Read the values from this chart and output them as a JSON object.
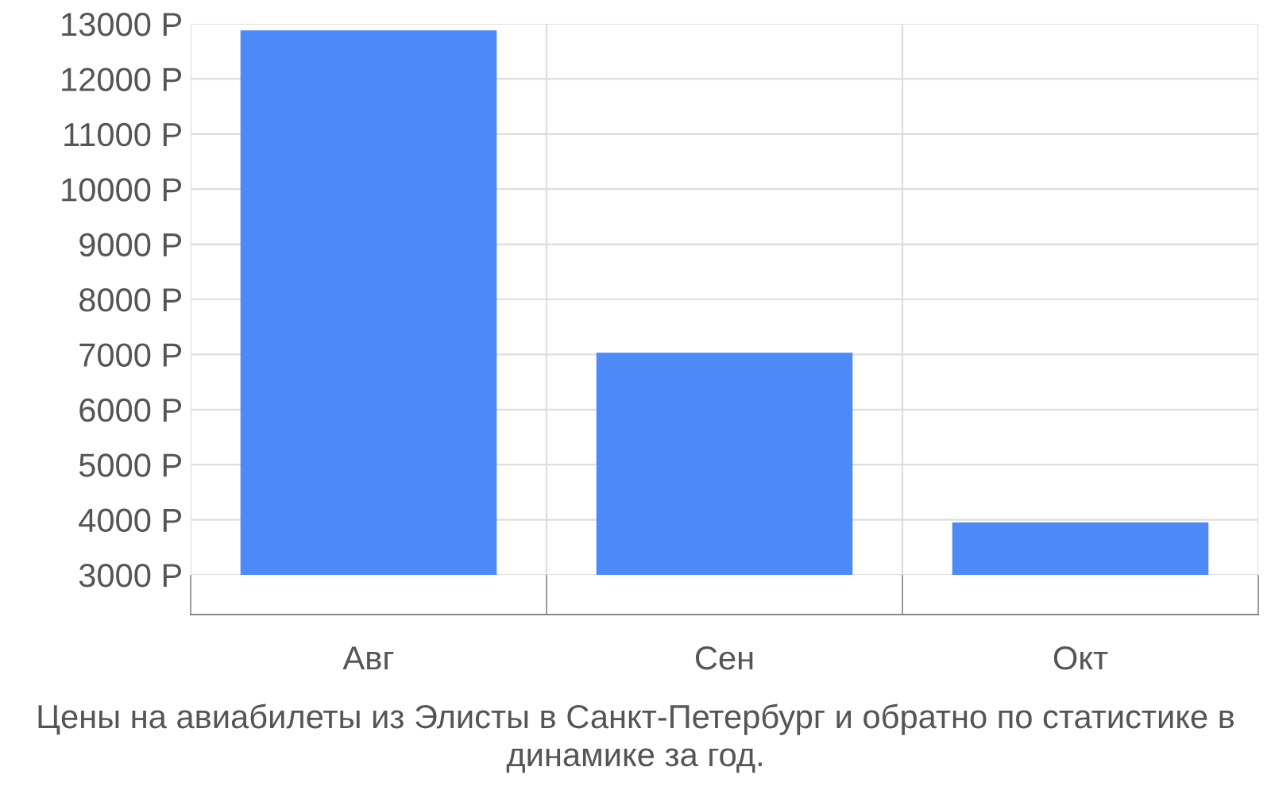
{
  "chart_data": {
    "type": "bar",
    "categories": [
      "Авг",
      "Сен",
      "Окт"
    ],
    "values": [
      12880,
      7030,
      3950
    ],
    "color": "#4d89f9",
    "ylim": [
      3000,
      13000
    ],
    "yticks": [
      {
        "value": 3000,
        "label": "3000 Р"
      },
      {
        "value": 4000,
        "label": "4000 Р"
      },
      {
        "value": 5000,
        "label": "5000 Р"
      },
      {
        "value": 6000,
        "label": "6000 Р"
      },
      {
        "value": 7000,
        "label": "7000 Р"
      },
      {
        "value": 8000,
        "label": "8000 Р"
      },
      {
        "value": 9000,
        "label": "9000 Р"
      },
      {
        "value": 10000,
        "label": "10000 Р"
      },
      {
        "value": 11000,
        "label": "11000 Р"
      },
      {
        "value": 12000,
        "label": "12000 Р"
      },
      {
        "value": 13000,
        "label": "13000 Р"
      }
    ],
    "grid": true,
    "annotations": [
      "Цены на авиабилеты из Элисты в Санкт-Петербург и обратно по статистике в динамике за год."
    ]
  }
}
